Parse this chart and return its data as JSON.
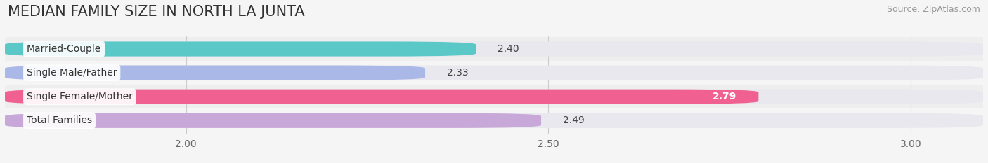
{
  "title": "MEDIAN FAMILY SIZE IN NORTH LA JUNTA",
  "source": "Source: ZipAtlas.com",
  "categories": [
    "Married-Couple",
    "Single Male/Father",
    "Single Female/Mother",
    "Total Families"
  ],
  "values": [
    2.4,
    2.33,
    2.79,
    2.49
  ],
  "bar_colors": [
    "#5bc8c8",
    "#aab8e8",
    "#f06090",
    "#c8a8d8"
  ],
  "bar_bg_color": "#e8e8ee",
  "xmin": 1.75,
  "xmax": 3.1,
  "xticks": [
    2.0,
    2.5,
    3.0
  ],
  "xtick_labels": [
    "2.00",
    "2.50",
    "3.00"
  ],
  "label_color_outside": "#444444",
  "label_color_inside": "#ffffff",
  "bar_height": 0.62,
  "title_fontsize": 15,
  "cat_fontsize": 10,
  "val_fontsize": 10,
  "tick_fontsize": 10,
  "source_fontsize": 9,
  "background_color": "#f5f5f5",
  "row_bg_colors": [
    "#eeeeee",
    "#f5f5f5",
    "#eeeeee",
    "#f5f5f5"
  ],
  "value_inside_threshold": 2.7
}
